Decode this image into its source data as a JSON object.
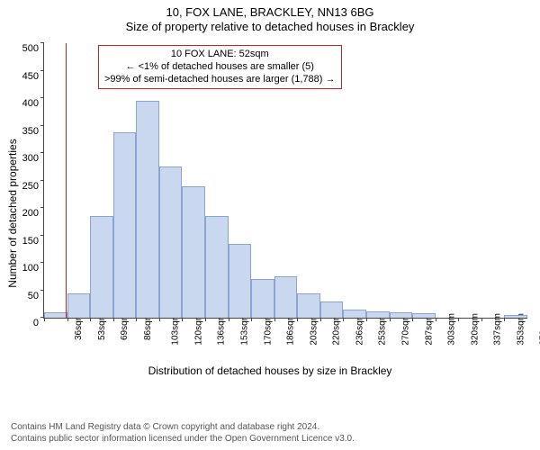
{
  "header": {
    "line1": "10, FOX LANE, BRACKLEY, NN13 6BG",
    "line2": "Size of property relative to detached houses in Brackley"
  },
  "axes": {
    "y_title": "Number of detached properties",
    "x_title": "Distribution of detached houses by size in Brackley"
  },
  "callout": {
    "line1": "10 FOX LANE: 52sqm",
    "line2": "← <1% of detached houses are smaller (5)",
    "line3": ">99% of semi-detached houses are larger (1,788) →",
    "border_color": "#d31c1c"
  },
  "marker": {
    "x_value": 52,
    "color": "#d31c1c"
  },
  "chart": {
    "type": "histogram",
    "bar_fill": "#c9d7ef",
    "bar_stroke": "#8aa4d6",
    "bar_stroke_width": 1,
    "background_color": "#ffffff",
    "ylim": [
      0,
      500
    ],
    "ytick_step": 50,
    "x_start": 36,
    "x_bin_width": 16.7,
    "x_unit": "sqm",
    "x_tick_count": 21,
    "bars": [
      10,
      45,
      185,
      338,
      395,
      275,
      240,
      185,
      135,
      70,
      75,
      45,
      30,
      15,
      12,
      10,
      8,
      0,
      0,
      0,
      5
    ]
  },
  "footer": {
    "line1": "Contains HM Land Registry data © Crown copyright and database right 2024.",
    "line2": "Contains public sector information licensed under the Open Government Licence v3.0."
  }
}
